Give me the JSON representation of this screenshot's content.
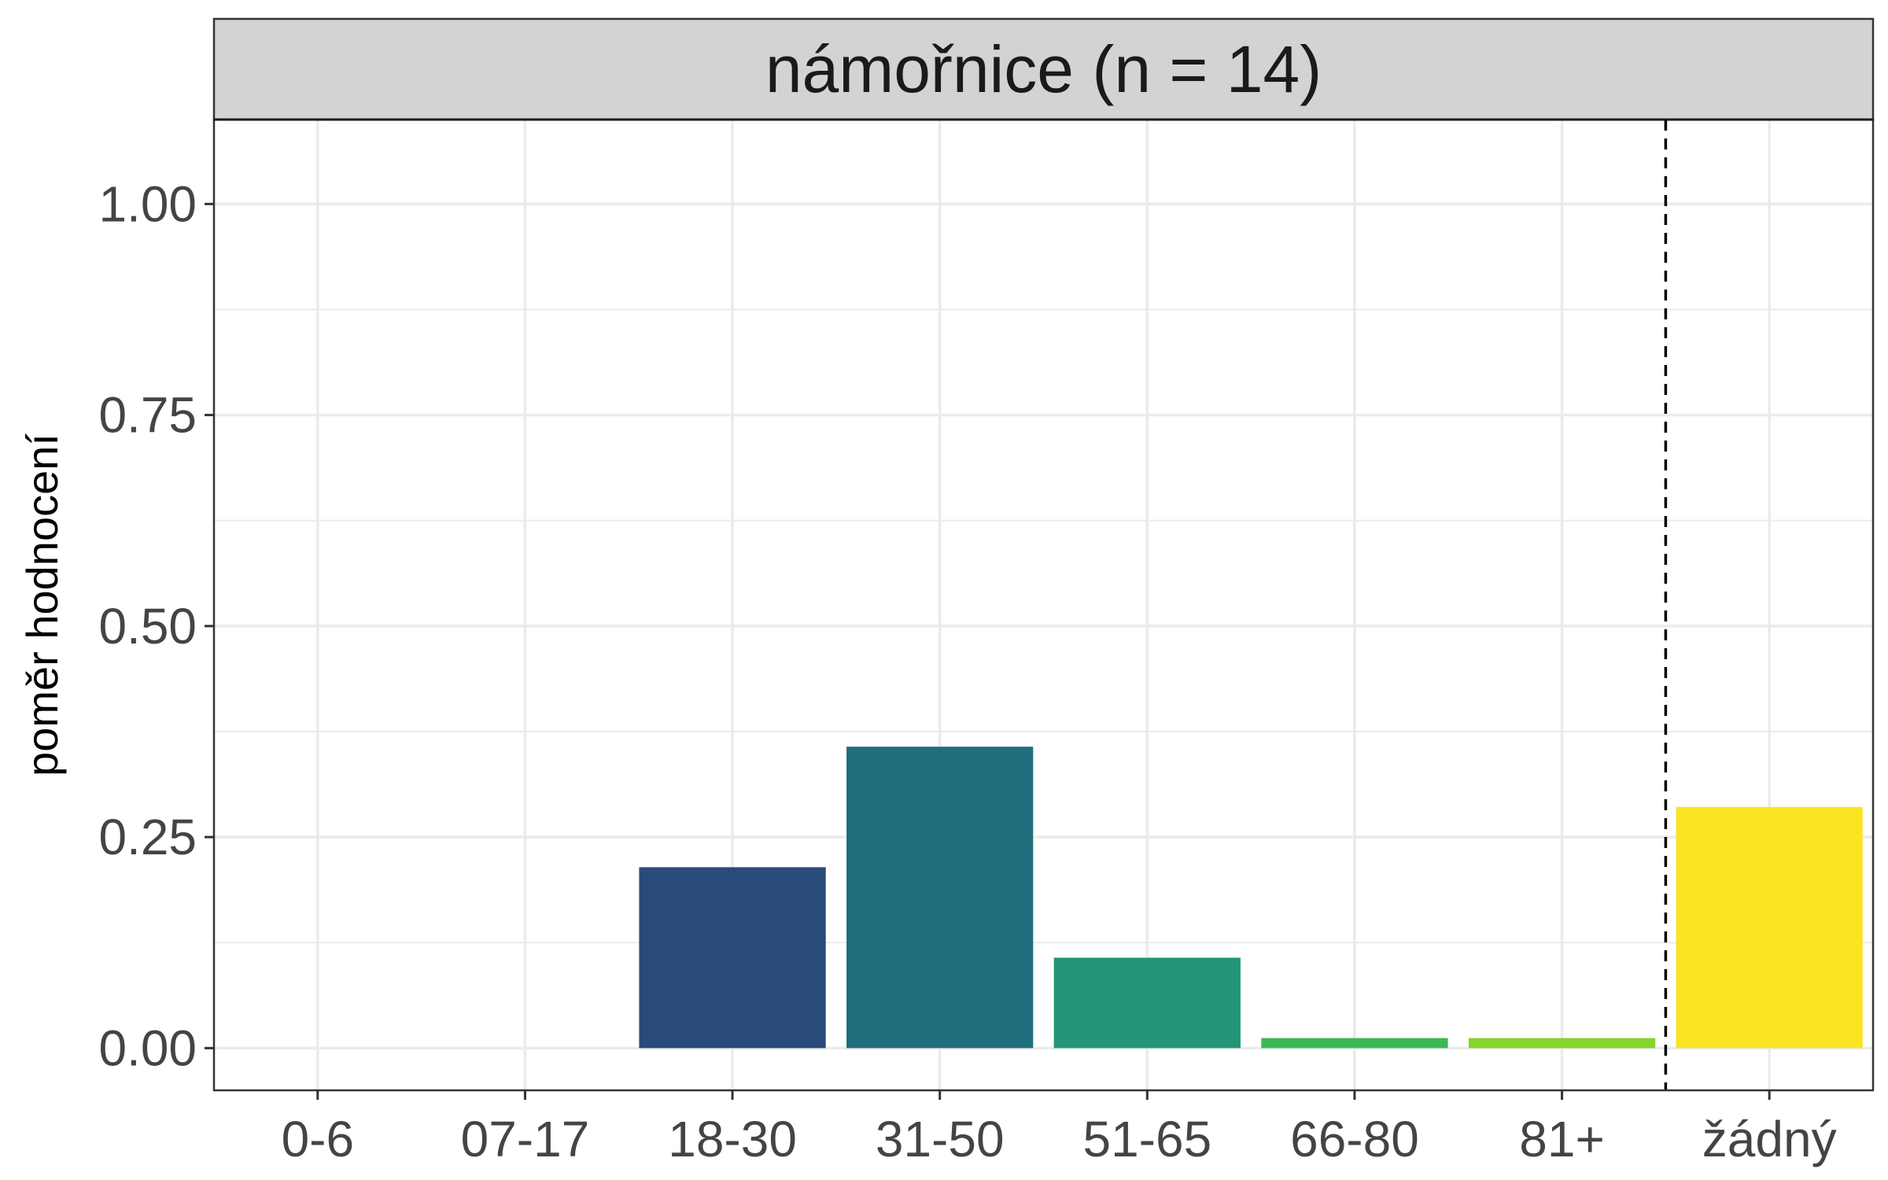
{
  "chart_data": {
    "type": "bar",
    "facet_title": "námořnice (n = 14)",
    "xlabel": "",
    "ylabel": "poměr hodnocení",
    "categories": [
      "0-6",
      "07-17",
      "18-30",
      "31-50",
      "51-65",
      "66-80",
      "81+",
      "žádný"
    ],
    "values": [
      0.0,
      0.0,
      0.2143,
      0.3571,
      0.1071,
      0.0119,
      0.0119,
      0.2857
    ],
    "bar_colors": [
      "#440154",
      "#46327e",
      "#2a4a7b",
      "#206e7c",
      "#229677",
      "#3bb754",
      "#86d42c",
      "#fbe424"
    ],
    "ylim": [
      -0.05,
      1.1
    ],
    "y_ticks": [
      0.0,
      0.25,
      0.5,
      0.75,
      1.0
    ],
    "y_tick_labels": [
      "0.00",
      "0.25",
      "0.50",
      "0.75",
      "1.00"
    ],
    "reference_line": {
      "after_category": "81+",
      "style": "dashed",
      "color": "#000000"
    },
    "grid": true,
    "strip_color": "#d3d3d3",
    "grid_color": "#ebebeb"
  }
}
